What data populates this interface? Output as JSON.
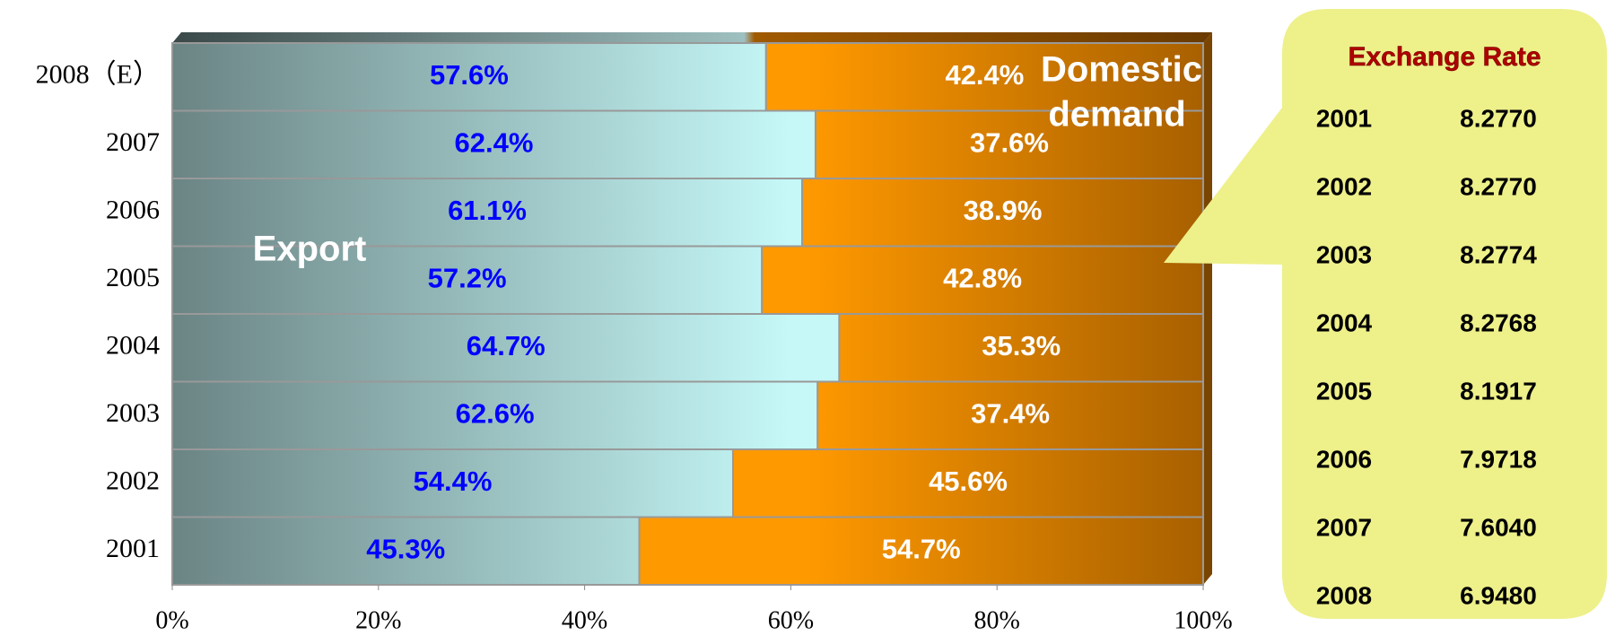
{
  "chart_data": {
    "type": "stacked-barh",
    "categories": [
      "2001",
      "2002",
      "2003",
      "2004",
      "2005",
      "2006",
      "2007",
      "2008（E）"
    ],
    "series": [
      {
        "name": "Export",
        "color": "#c6f8f8",
        "values": [
          45.3,
          54.4,
          62.6,
          64.7,
          57.2,
          61.1,
          62.4,
          57.6
        ],
        "value_labels": [
          "45.3%",
          "54.4%",
          "62.6%",
          "64.7%",
          "57.2%",
          "61.1%",
          "62.4%",
          "57.6%"
        ]
      },
      {
        "name": "Domestic demand",
        "color": "#ff9900",
        "values": [
          54.7,
          45.6,
          37.4,
          35.3,
          42.8,
          38.9,
          37.6,
          42.4
        ],
        "value_labels": [
          "54.7%",
          "45.6%",
          "37.4%",
          "35.3%",
          "42.8%",
          "38.9%",
          "37.6%",
          "42.4%"
        ]
      }
    ],
    "xlim": [
      0,
      100
    ],
    "xticks": [
      {
        "value": 0,
        "label": "0%"
      },
      {
        "value": 20,
        "label": "20%"
      },
      {
        "value": 40,
        "label": "40%"
      },
      {
        "value": 60,
        "label": "60%"
      },
      {
        "value": 80,
        "label": "80%"
      },
      {
        "value": 100,
        "label": "100%"
      }
    ],
    "annotations": [
      "Export",
      "Domestic",
      "demand"
    ]
  },
  "callout": {
    "title": "Exchange Rate",
    "rows": [
      [
        "2001",
        "8.2770"
      ],
      [
        "2002",
        "8.2770"
      ],
      [
        "2003",
        "8.2774"
      ],
      [
        "2004",
        "8.2768"
      ],
      [
        "2005",
        "8.1917"
      ],
      [
        "2006",
        "7.9718"
      ],
      [
        "2007",
        "7.6040"
      ],
      [
        "2008",
        "6.9480"
      ]
    ]
  }
}
